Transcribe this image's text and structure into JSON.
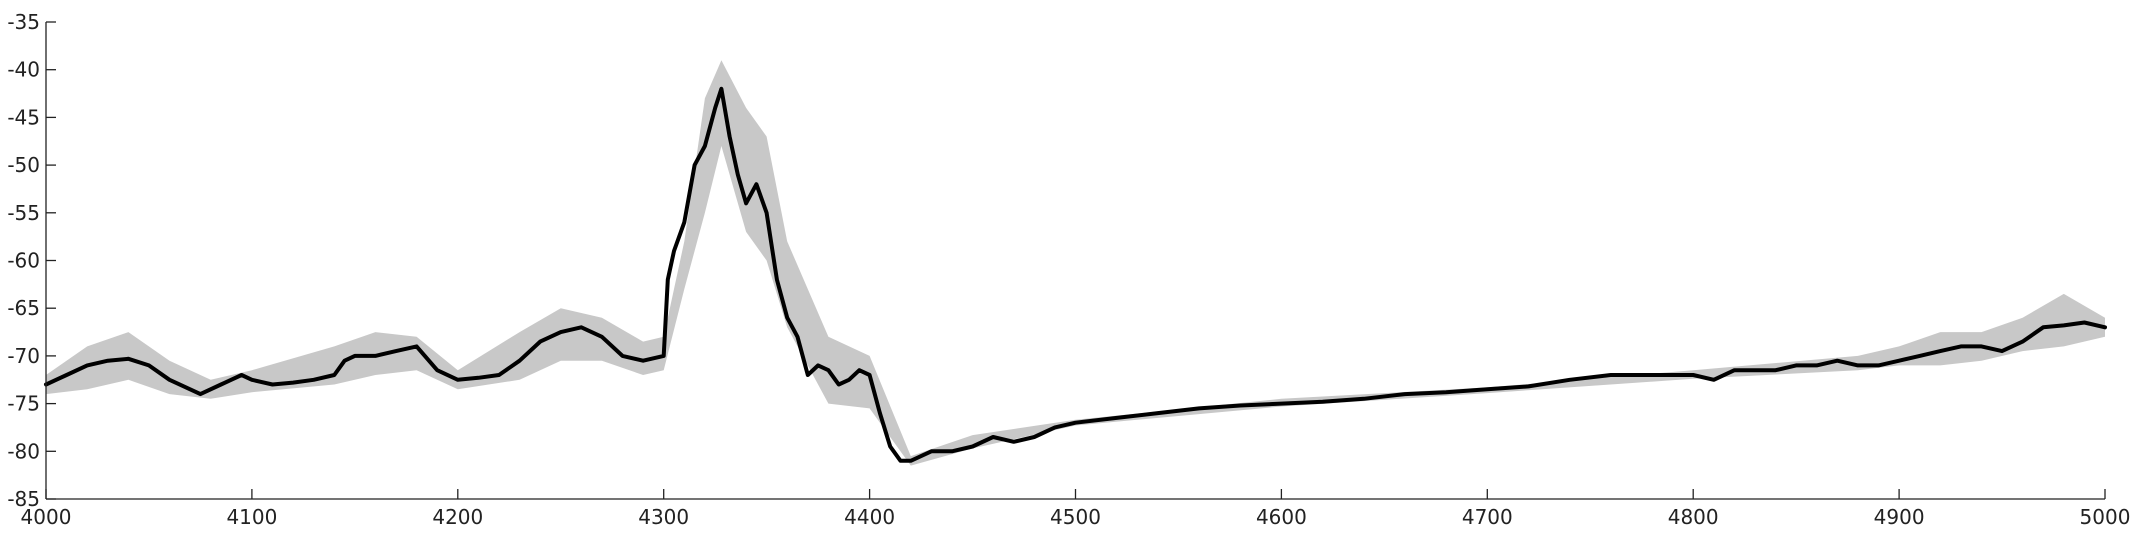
{
  "chart_data": {
    "type": "line",
    "title": "",
    "xlabel": "",
    "ylabel": "",
    "xlim": [
      4000,
      5000
    ],
    "ylim": [
      -85,
      -35
    ],
    "xticks": [
      4000,
      4100,
      4200,
      4300,
      4400,
      4500,
      4600,
      4700,
      4800,
      4900,
      5000
    ],
    "yticks": [
      -35,
      -40,
      -45,
      -50,
      -55,
      -60,
      -65,
      -70,
      -75,
      -80,
      -85
    ],
    "grid": false,
    "colors": {
      "mean": "#000000",
      "band": "#c8c8c8",
      "axis": "#222222"
    },
    "series": [
      {
        "role": "mean",
        "x": [
          4000,
          4010,
          4020,
          4030,
          4040,
          4050,
          4060,
          4070,
          4075,
          4085,
          4095,
          4100,
          4110,
          4120,
          4130,
          4140,
          4145,
          4150,
          4160,
          4170,
          4180,
          4190,
          4200,
          4210,
          4220,
          4230,
          4240,
          4250,
          4260,
          4270,
          4280,
          4290,
          4300,
          4302,
          4305,
          4310,
          4315,
          4320,
          4325,
          4328,
          4332,
          4336,
          4340,
          4345,
          4350,
          4355,
          4360,
          4365,
          4370,
          4375,
          4380,
          4385,
          4390,
          4395,
          4400,
          4405,
          4410,
          4415,
          4420,
          4430,
          4440,
          4450,
          4460,
          4470,
          4480,
          4490,
          4500,
          4520,
          4540,
          4560,
          4580,
          4600,
          4620,
          4640,
          4660,
          4680,
          4700,
          4720,
          4740,
          4760,
          4780,
          4800,
          4810,
          4820,
          4830,
          4840,
          4850,
          4860,
          4870,
          4880,
          4890,
          4900,
          4910,
          4920,
          4930,
          4940,
          4950,
          4960,
          4970,
          4980,
          4990,
          5000
        ],
        "y": [
          -73,
          -72,
          -71,
          -70.5,
          -70.3,
          -71,
          -72.5,
          -73.5,
          -74,
          -73,
          -72,
          -72.5,
          -73,
          -72.8,
          -72.5,
          -72,
          -70.5,
          -70,
          -70,
          -69.5,
          -69,
          -71.5,
          -72.5,
          -72.3,
          -72,
          -70.5,
          -68.5,
          -67.5,
          -67,
          -68,
          -70,
          -70.5,
          -70,
          -62,
          -59,
          -56,
          -50,
          -48,
          -44,
          -42,
          -47,
          -51,
          -54,
          -52,
          -55,
          -62,
          -66,
          -68,
          -72,
          -71,
          -71.5,
          -73,
          -72.5,
          -71.5,
          -72,
          -76,
          -79.5,
          -81,
          -81,
          -80,
          -80,
          -79.5,
          -78.5,
          -79,
          -78.5,
          -77.5,
          -77,
          -76.5,
          -76,
          -75.5,
          -75.2,
          -75,
          -74.8,
          -74.5,
          -74,
          -73.8,
          -73.5,
          -73.2,
          -72.5,
          -72,
          -72,
          -72,
          -72.5,
          -71.5,
          -71.5,
          -71.5,
          -71,
          -71,
          -70.5,
          -71,
          -71,
          -70.5,
          -70,
          -69.5,
          -69,
          -69,
          -69.5,
          -68.5,
          -67,
          -66.8,
          -66.5,
          -67
        ]
      },
      {
        "role": "upper-band",
        "x": [
          4000,
          4020,
          4040,
          4060,
          4080,
          4100,
          4140,
          4160,
          4180,
          4200,
          4230,
          4250,
          4270,
          4290,
          4300,
          4310,
          4320,
          4328,
          4340,
          4350,
          4360,
          4380,
          4400,
          4420,
          4450,
          4500,
          4600,
          4700,
          4800,
          4880,
          4900,
          4920,
          4940,
          4960,
          4980,
          5000
        ],
        "y": [
          -72,
          -69,
          -67.5,
          -70.5,
          -72.5,
          -71.5,
          -69,
          -67.5,
          -68,
          -71.5,
          -67.5,
          -65,
          -66,
          -68.5,
          -68,
          -58,
          -43,
          -39,
          -44,
          -47,
          -58,
          -68,
          -70,
          -80.5,
          -78.3,
          -76.7,
          -74.5,
          -73.3,
          -71.5,
          -70,
          -69,
          -67.5,
          -67.5,
          -66,
          -63.5,
          -66
        ]
      },
      {
        "role": "lower-band",
        "x": [
          4000,
          4020,
          4040,
          4060,
          4080,
          4100,
          4140,
          4160,
          4180,
          4200,
          4230,
          4250,
          4270,
          4290,
          4300,
          4310,
          4320,
          4328,
          4340,
          4350,
          4360,
          4380,
          4400,
          4420,
          4450,
          4500,
          4600,
          4700,
          4800,
          4880,
          4900,
          4920,
          4940,
          4960,
          4980,
          5000
        ],
        "y": [
          -74,
          -73.5,
          -72.5,
          -74,
          -74.5,
          -73.8,
          -73,
          -72,
          -71.5,
          -73.5,
          -72.5,
          -70.5,
          -70.5,
          -72,
          -71.5,
          -63,
          -55,
          -48,
          -57,
          -60,
          -67,
          -75,
          -75.5,
          -81.5,
          -79.7,
          -77.3,
          -75.3,
          -73.9,
          -72.4,
          -71.5,
          -71,
          -71,
          -70.5,
          -69.5,
          -69,
          -68
        ]
      }
    ]
  }
}
